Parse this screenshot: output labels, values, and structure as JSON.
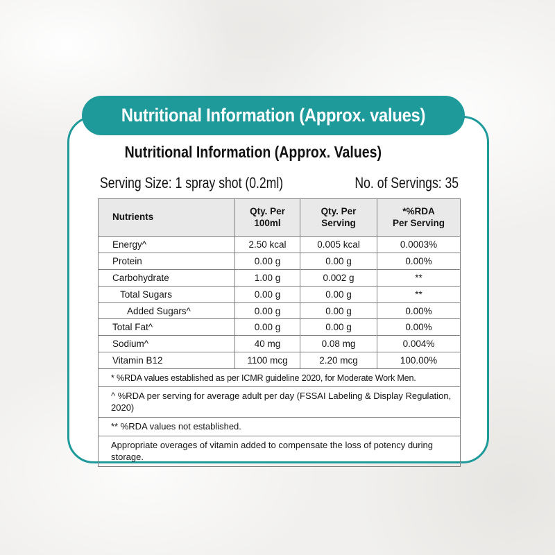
{
  "banner": {
    "title": "Nutritional Information (Approx. values)"
  },
  "card": {
    "title": "Nutritional Information (Approx. Values)",
    "serving_size": "Serving Size: 1 spray shot (0.2ml)",
    "servings": "No. of Servings: 35"
  },
  "table": {
    "headers": [
      "Nutrients",
      "Qty. Per\n100ml",
      "Qty. Per\nServing",
      "*%RDA\nPer Serving"
    ],
    "rows": [
      {
        "nutrient": "Energy^",
        "per_100ml": "2.50 kcal",
        "per_serving": "0.005 kcal",
        "rda_per_serving": "0.0003%"
      },
      {
        "nutrient": "Protein",
        "per_100ml": "0.00 g",
        "per_serving": "0.00 g",
        "rda_per_serving": "0.00%"
      },
      {
        "nutrient": "Carbohydrate",
        "per_100ml": "1.00 g",
        "per_serving": "0.002 g",
        "rda_per_serving": "**"
      },
      {
        "nutrient": "Total Sugars",
        "per_100ml": "0.00 g",
        "per_serving": "0.00 g",
        "rda_per_serving": "**"
      },
      {
        "nutrient": "Added Sugars^",
        "per_100ml": "0.00 g",
        "per_serving": "0.00 g",
        "rda_per_serving": "0.00%"
      },
      {
        "nutrient": "Total Fat^",
        "per_100ml": "0.00 g",
        "per_serving": "0.00 g",
        "rda_per_serving": "0.00%"
      },
      {
        "nutrient": "Sodium^",
        "per_100ml": "40 mg",
        "per_serving": "0.08 mg",
        "rda_per_serving": "0.004%"
      },
      {
        "nutrient": "Vitamin B12",
        "per_100ml": "1100 mcg",
        "per_serving": "2.20 mcg",
        "rda_per_serving": "100.00%"
      }
    ],
    "footnotes": [
      "* %RDA values established as per ICMR guideline 2020, for Moderate Work Men.",
      "^ %RDA per serving for average adult per day (FSSAI Labeling & Display Regulation, 2020)",
      "** %RDA values not established.",
      "Appropriate overages of vitamin added to compensate the loss of potency during storage."
    ]
  },
  "colors": {
    "accent_teal": "#1e9a9b",
    "table_border": "#7f7f7f",
    "header_background": "#e9e9e9",
    "card_background": "#ffffff",
    "page_background": "#f1f0ee",
    "banner_text": "#ffffff",
    "body_text": "#141414"
  }
}
